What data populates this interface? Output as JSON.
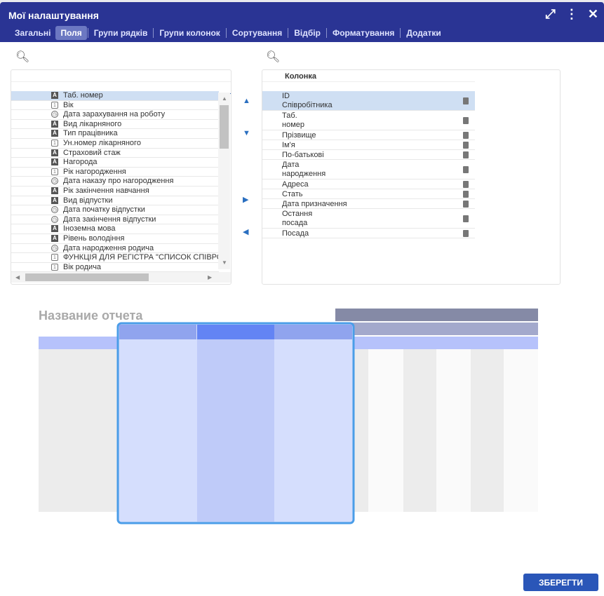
{
  "window": {
    "title": "Мої налаштування",
    "icons": [
      "expand-icon",
      "more-vertical-icon",
      "close-icon"
    ]
  },
  "tabs": [
    {
      "label": "Загальні"
    },
    {
      "label": "Поля",
      "active": true
    },
    {
      "label": "Групи рядків"
    },
    {
      "label": "Групи колонок"
    },
    {
      "label": "Сортування"
    },
    {
      "label": "Відбір"
    },
    {
      "label": "Форматування"
    },
    {
      "label": "Додатки"
    }
  ],
  "left": {
    "items": [
      {
        "label": "Таб. номер",
        "type": "string",
        "selected": true
      },
      {
        "label": "Вік",
        "type": "number"
      },
      {
        "label": "Дата зарахування на роботу",
        "type": "date"
      },
      {
        "label": "Вид лікарняного",
        "type": "string"
      },
      {
        "label": "Тип працівника",
        "type": "string"
      },
      {
        "label": "Ун.номер лікарняного",
        "type": "number"
      },
      {
        "label": "Страховий стаж",
        "type": "string"
      },
      {
        "label": "Нагорода",
        "type": "string"
      },
      {
        "label": "Рік нагородження",
        "type": "number"
      },
      {
        "label": "Дата наказу про нагородження",
        "type": "date"
      },
      {
        "label": "Рік закінчення навчання",
        "type": "string"
      },
      {
        "label": "Вид відпустки",
        "type": "string"
      },
      {
        "label": "Дата початку відпустки",
        "type": "date"
      },
      {
        "label": "Дата закінчення відпустки",
        "type": "date"
      },
      {
        "label": "Іноземна мова",
        "type": "string"
      },
      {
        "label": "Рівень володіння",
        "type": "string"
      },
      {
        "label": "Дата народження родича",
        "type": "date"
      },
      {
        "label": "ФУНКЦІЯ ДЛЯ РЕГІСТРА \"СПИСОК СПІВРОБІТНИКІВ",
        "type": "number"
      },
      {
        "label": "Вік родича",
        "type": "number"
      }
    ]
  },
  "right": {
    "header": "Колонка",
    "items": [
      {
        "label": "ID\nСпівробітника",
        "selected": true
      },
      {
        "label": "Таб.\nномер"
      },
      {
        "label": "Прізвище"
      },
      {
        "label": "Ім'я"
      },
      {
        "label": "По-батькові"
      },
      {
        "label": "Дата\n народження"
      },
      {
        "label": "Адреса"
      },
      {
        "label": "Стать"
      },
      {
        "label": "Дата призначення"
      },
      {
        "label": "Остання\nпосада"
      },
      {
        "label": "Посада"
      }
    ]
  },
  "preview": {
    "title": "Название отчета"
  },
  "save_label": "ЗБЕРЕГТИ",
  "colors": {
    "header": "#2a3494",
    "accent": "#2a56b8",
    "selection": "#cfdff3"
  }
}
